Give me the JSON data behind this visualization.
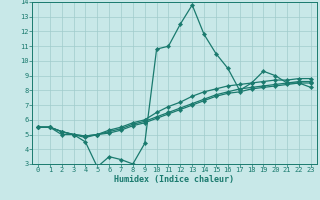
{
  "title": "",
  "xlabel": "Humidex (Indice chaleur)",
  "xlim": [
    -0.5,
    23.5
  ],
  "ylim": [
    3,
    14
  ],
  "xticks": [
    0,
    1,
    2,
    3,
    4,
    5,
    6,
    7,
    8,
    9,
    10,
    11,
    12,
    13,
    14,
    15,
    16,
    17,
    18,
    19,
    20,
    21,
    22,
    23
  ],
  "yticks": [
    3,
    4,
    5,
    6,
    7,
    8,
    9,
    10,
    11,
    12,
    13,
    14
  ],
  "bg_color": "#c8e8e8",
  "grid_color": "#a0cccc",
  "line_color": "#1a7a6e",
  "lines": [
    [
      5.5,
      5.5,
      5.0,
      5.0,
      4.5,
      2.8,
      3.5,
      3.3,
      3.0,
      4.4,
      10.8,
      11.0,
      12.5,
      13.8,
      11.8,
      10.5,
      9.5,
      8.0,
      8.5,
      9.3,
      9.0,
      8.5,
      8.5,
      8.2
    ],
    [
      5.5,
      5.5,
      5.2,
      5.0,
      4.8,
      5.0,
      5.3,
      5.5,
      5.8,
      6.0,
      6.5,
      6.9,
      7.2,
      7.6,
      7.9,
      8.1,
      8.3,
      8.4,
      8.5,
      8.6,
      8.7,
      8.7,
      8.8,
      8.8
    ],
    [
      5.5,
      5.5,
      5.2,
      5.0,
      4.9,
      5.0,
      5.2,
      5.4,
      5.7,
      5.9,
      6.2,
      6.5,
      6.8,
      7.1,
      7.4,
      7.7,
      7.9,
      8.1,
      8.2,
      8.3,
      8.4,
      8.5,
      8.6,
      8.6
    ],
    [
      5.5,
      5.5,
      5.2,
      5.0,
      4.9,
      5.0,
      5.1,
      5.3,
      5.6,
      5.8,
      6.1,
      6.4,
      6.7,
      7.0,
      7.3,
      7.6,
      7.8,
      7.9,
      8.1,
      8.2,
      8.3,
      8.4,
      8.5,
      8.5
    ]
  ],
  "marker": "D",
  "markersize": 2.2,
  "linewidth": 0.9,
  "tick_fontsize": 5.0,
  "xlabel_fontsize": 6.0
}
